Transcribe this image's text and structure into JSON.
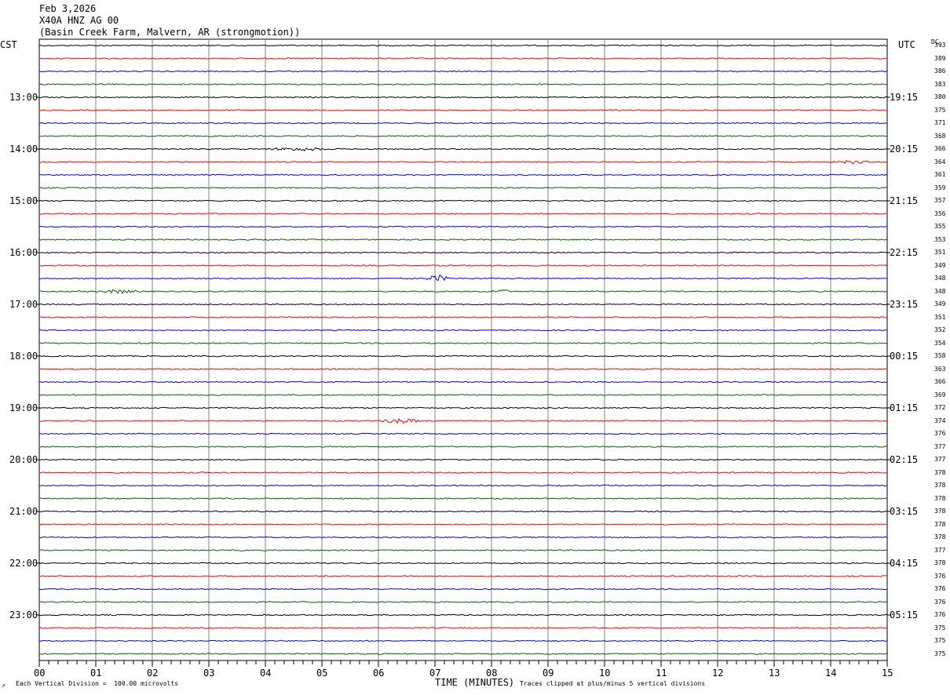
{
  "header": {
    "date": "Feb 3,2026",
    "station": "X40A HNZ AG 00",
    "site": "(Basin Creek Farm, Malvern, AR (strongmotion))"
  },
  "labels": {
    "left_tz": "CST",
    "right_tz": "UTC",
    "dc_label": "DC",
    "x_title": "TIME (MINUTES)",
    "scale_note": "Each Vertical Division =  100.00 microvolts",
    "clip_note": "Traces clipped at plus/minus 5 vertical divisions",
    "corner_mark": "↗"
  },
  "colors": {
    "black": "#000000",
    "red": "#ff0000",
    "blue": "#0000ff",
    "green": "#006400",
    "grid": "#808080"
  },
  "chart_data": {
    "type": "line",
    "title": "X40A HNZ AG 00",
    "xlabel": "TIME (MINUTES)",
    "xlim": [
      0,
      15
    ],
    "x_ticks": [
      "00",
      "01",
      "02",
      "03",
      "04",
      "05",
      "06",
      "07",
      "08",
      "09",
      "10",
      "11",
      "12",
      "13",
      "14",
      "15"
    ],
    "row_minutes": 15,
    "trace_color_cycle": [
      "black",
      "red",
      "blue",
      "green"
    ],
    "left_time_labels": [
      "13:00",
      "14:00",
      "15:00",
      "16:00",
      "17:00",
      "18:00",
      "19:00",
      "20:00",
      "21:00",
      "22:00",
      "23:00"
    ],
    "right_time_labels": [
      "19:15",
      "20:15",
      "21:15",
      "22:15",
      "23:15",
      "00:15",
      "01:15",
      "02:15",
      "03:15",
      "04:15",
      "05:15"
    ],
    "dc_values": [
      393,
      389,
      386,
      383,
      380,
      375,
      371,
      368,
      366,
      364,
      361,
      359,
      357,
      356,
      355,
      353,
      351,
      349,
      348,
      348,
      349,
      351,
      352,
      354,
      358,
      363,
      366,
      369,
      372,
      374,
      376,
      377,
      377,
      378,
      378,
      378,
      378,
      378,
      378,
      377,
      378,
      376,
      376,
      376,
      376,
      375,
      375,
      375
    ],
    "events": [
      {
        "trace": 18,
        "minute_start": 6.8,
        "minute_end": 7.3,
        "amplitude": 4
      },
      {
        "trace": 19,
        "minute_start": 1.0,
        "minute_end": 1.8,
        "amplitude": 2
      },
      {
        "trace": 19,
        "minute_start": 7.9,
        "minute_end": 8.4,
        "amplitude": 2
      },
      {
        "trace": 29,
        "minute_start": 6.0,
        "minute_end": 6.8,
        "amplitude": 3
      },
      {
        "trace": 8,
        "minute_start": 4.0,
        "minute_end": 5.2,
        "amplitude": 2
      },
      {
        "trace": 9,
        "minute_start": 14.0,
        "minute_end": 14.7,
        "amplitude": 2
      }
    ]
  }
}
